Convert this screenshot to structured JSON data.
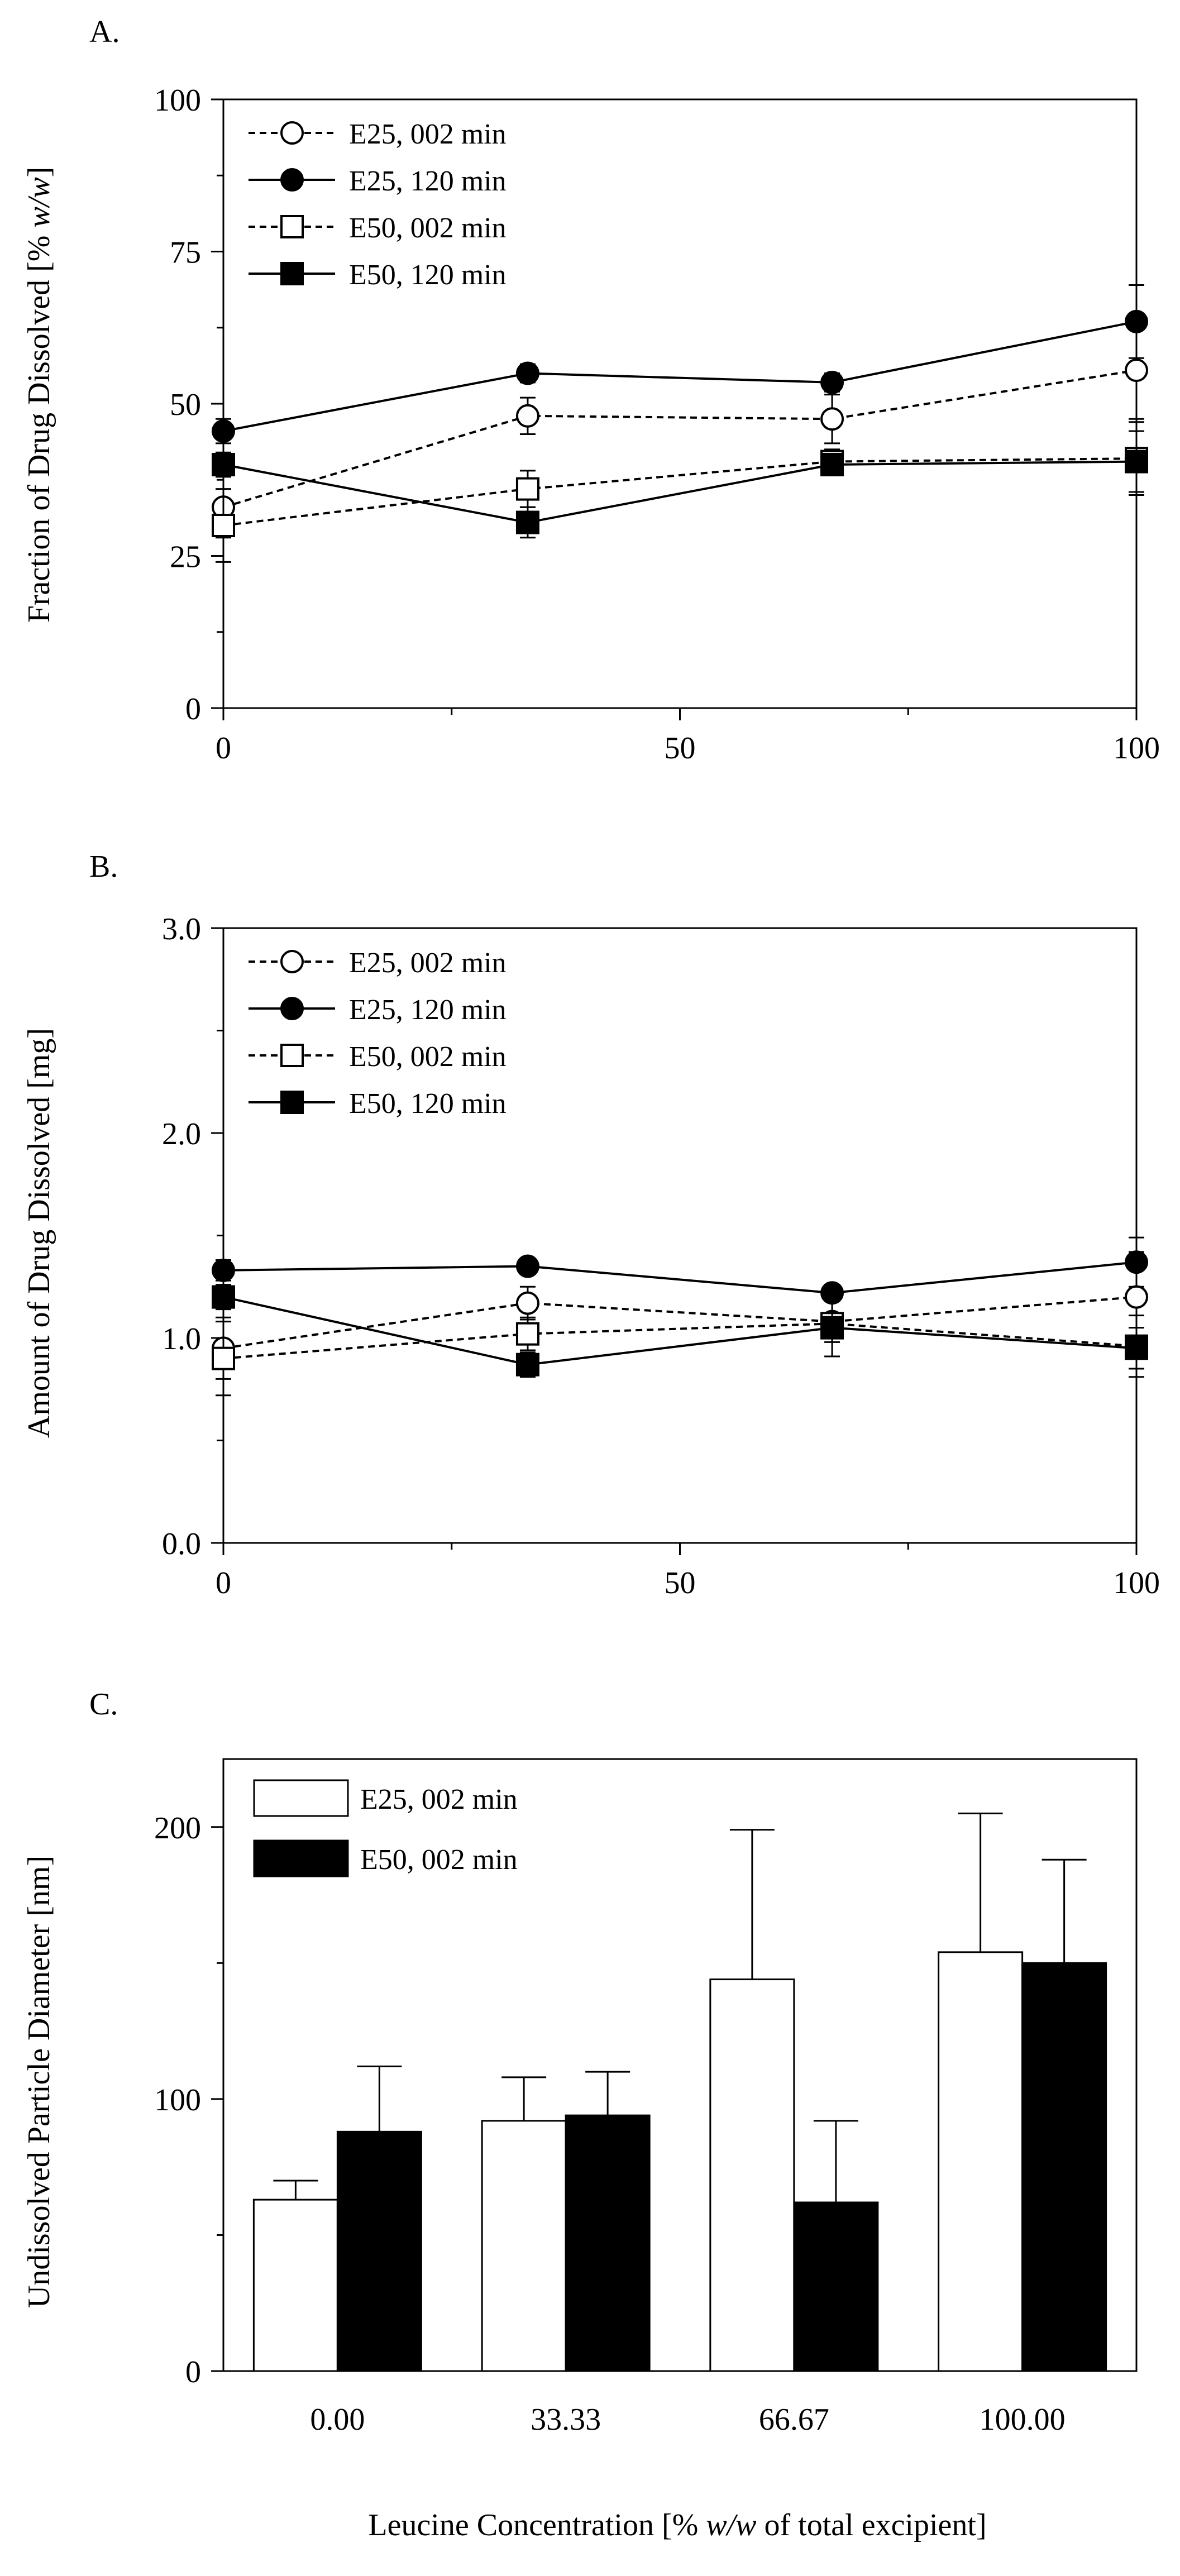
{
  "figure": {
    "xlabel_text": "Leucine Concentration [% ",
    "xlabel_ital": "w/w",
    "xlabel_tail": " of total excipient]"
  },
  "chart_data": [
    {
      "panel": "A.",
      "type": "line",
      "ylabel_text": "Fraction of Drug Dissolved [% ",
      "ylabel_ital": "w/w",
      "ylabel_tail": "]",
      "xlim": [
        0,
        100
      ],
      "ylim": [
        0,
        100
      ],
      "xticks": [
        "0",
        "50",
        "100"
      ],
      "yticks": [
        "0",
        "25",
        "50",
        "75",
        "100"
      ],
      "x": [
        0,
        33.33,
        66.67,
        100
      ],
      "series": [
        {
          "name": "E25, 002 min",
          "marker": "circle",
          "filled": false,
          "dashed": true,
          "values": [
            33,
            48,
            47.5,
            55.5
          ],
          "errors": [
            5,
            3,
            4,
            8
          ]
        },
        {
          "name": "E25, 120 min",
          "marker": "circle",
          "filled": true,
          "dashed": false,
          "values": [
            45.5,
            55,
            53.5,
            63.5
          ],
          "errors": [
            2,
            1.5,
            1.5,
            6
          ]
        },
        {
          "name": "E50, 002 min",
          "marker": "square",
          "filled": false,
          "dashed": true,
          "values": [
            30,
            36,
            40.5,
            41
          ],
          "errors": [
            6,
            3,
            2,
            6
          ]
        },
        {
          "name": "E50, 120 min",
          "marker": "square",
          "filled": true,
          "dashed": false,
          "values": [
            40,
            30.5,
            40,
            40.5
          ],
          "errors": [
            2,
            2.5,
            1.5,
            5
          ]
        }
      ]
    },
    {
      "panel": "B.",
      "type": "line",
      "ylabel_text": "Amount of Drug Dissolved [mg]",
      "ylabel_ital": "",
      "ylabel_tail": "",
      "xlim": [
        0,
        100
      ],
      "ylim": [
        0,
        3
      ],
      "xticks": [
        "0",
        "50",
        "100"
      ],
      "yticks": [
        "0.0",
        "1.0",
        "2.0",
        "3.0"
      ],
      "x": [
        0,
        33.33,
        66.67,
        100
      ],
      "series": [
        {
          "name": "E25, 002 min",
          "marker": "circle",
          "filled": false,
          "dashed": true,
          "values": [
            0.95,
            1.17,
            1.08,
            1.2
          ],
          "errors": [
            0.15,
            0.08,
            0.1,
            0.22
          ]
        },
        {
          "name": "E25, 120 min",
          "marker": "circle",
          "filled": true,
          "dashed": false,
          "values": [
            1.33,
            1.35,
            1.22,
            1.37
          ],
          "errors": [
            0.05,
            0.03,
            0.04,
            0.12
          ]
        },
        {
          "name": "E50, 002 min",
          "marker": "square",
          "filled": false,
          "dashed": true,
          "values": [
            0.9,
            1.02,
            1.07,
            0.96
          ],
          "errors": [
            0.18,
            0.08,
            0.05,
            0.15
          ]
        },
        {
          "name": "E50, 120 min",
          "marker": "square",
          "filled": true,
          "dashed": false,
          "values": [
            1.2,
            0.87,
            1.05,
            0.95
          ],
          "errors": [
            0.06,
            0.06,
            0.14,
            0.1
          ]
        }
      ]
    },
    {
      "panel": "C.",
      "type": "bar",
      "ylabel_text": "Undissolved Particle Diameter [nm]",
      "ylabel_ital": "",
      "ylabel_tail": "",
      "ylim": [
        0,
        225
      ],
      "yticks": [
        "0",
        "100",
        "200"
      ],
      "categories": [
        "0.00",
        "33.33",
        "66.67",
        "100.00"
      ],
      "series": [
        {
          "name": "E25, 002 min",
          "color": "#ffffff",
          "values": [
            63,
            92,
            144,
            154
          ],
          "errors": [
            7,
            16,
            55,
            51
          ]
        },
        {
          "name": "E50, 002 min",
          "color": "#000000",
          "values": [
            88,
            94,
            62,
            150
          ],
          "errors": [
            24,
            16,
            30,
            38
          ]
        }
      ]
    }
  ]
}
